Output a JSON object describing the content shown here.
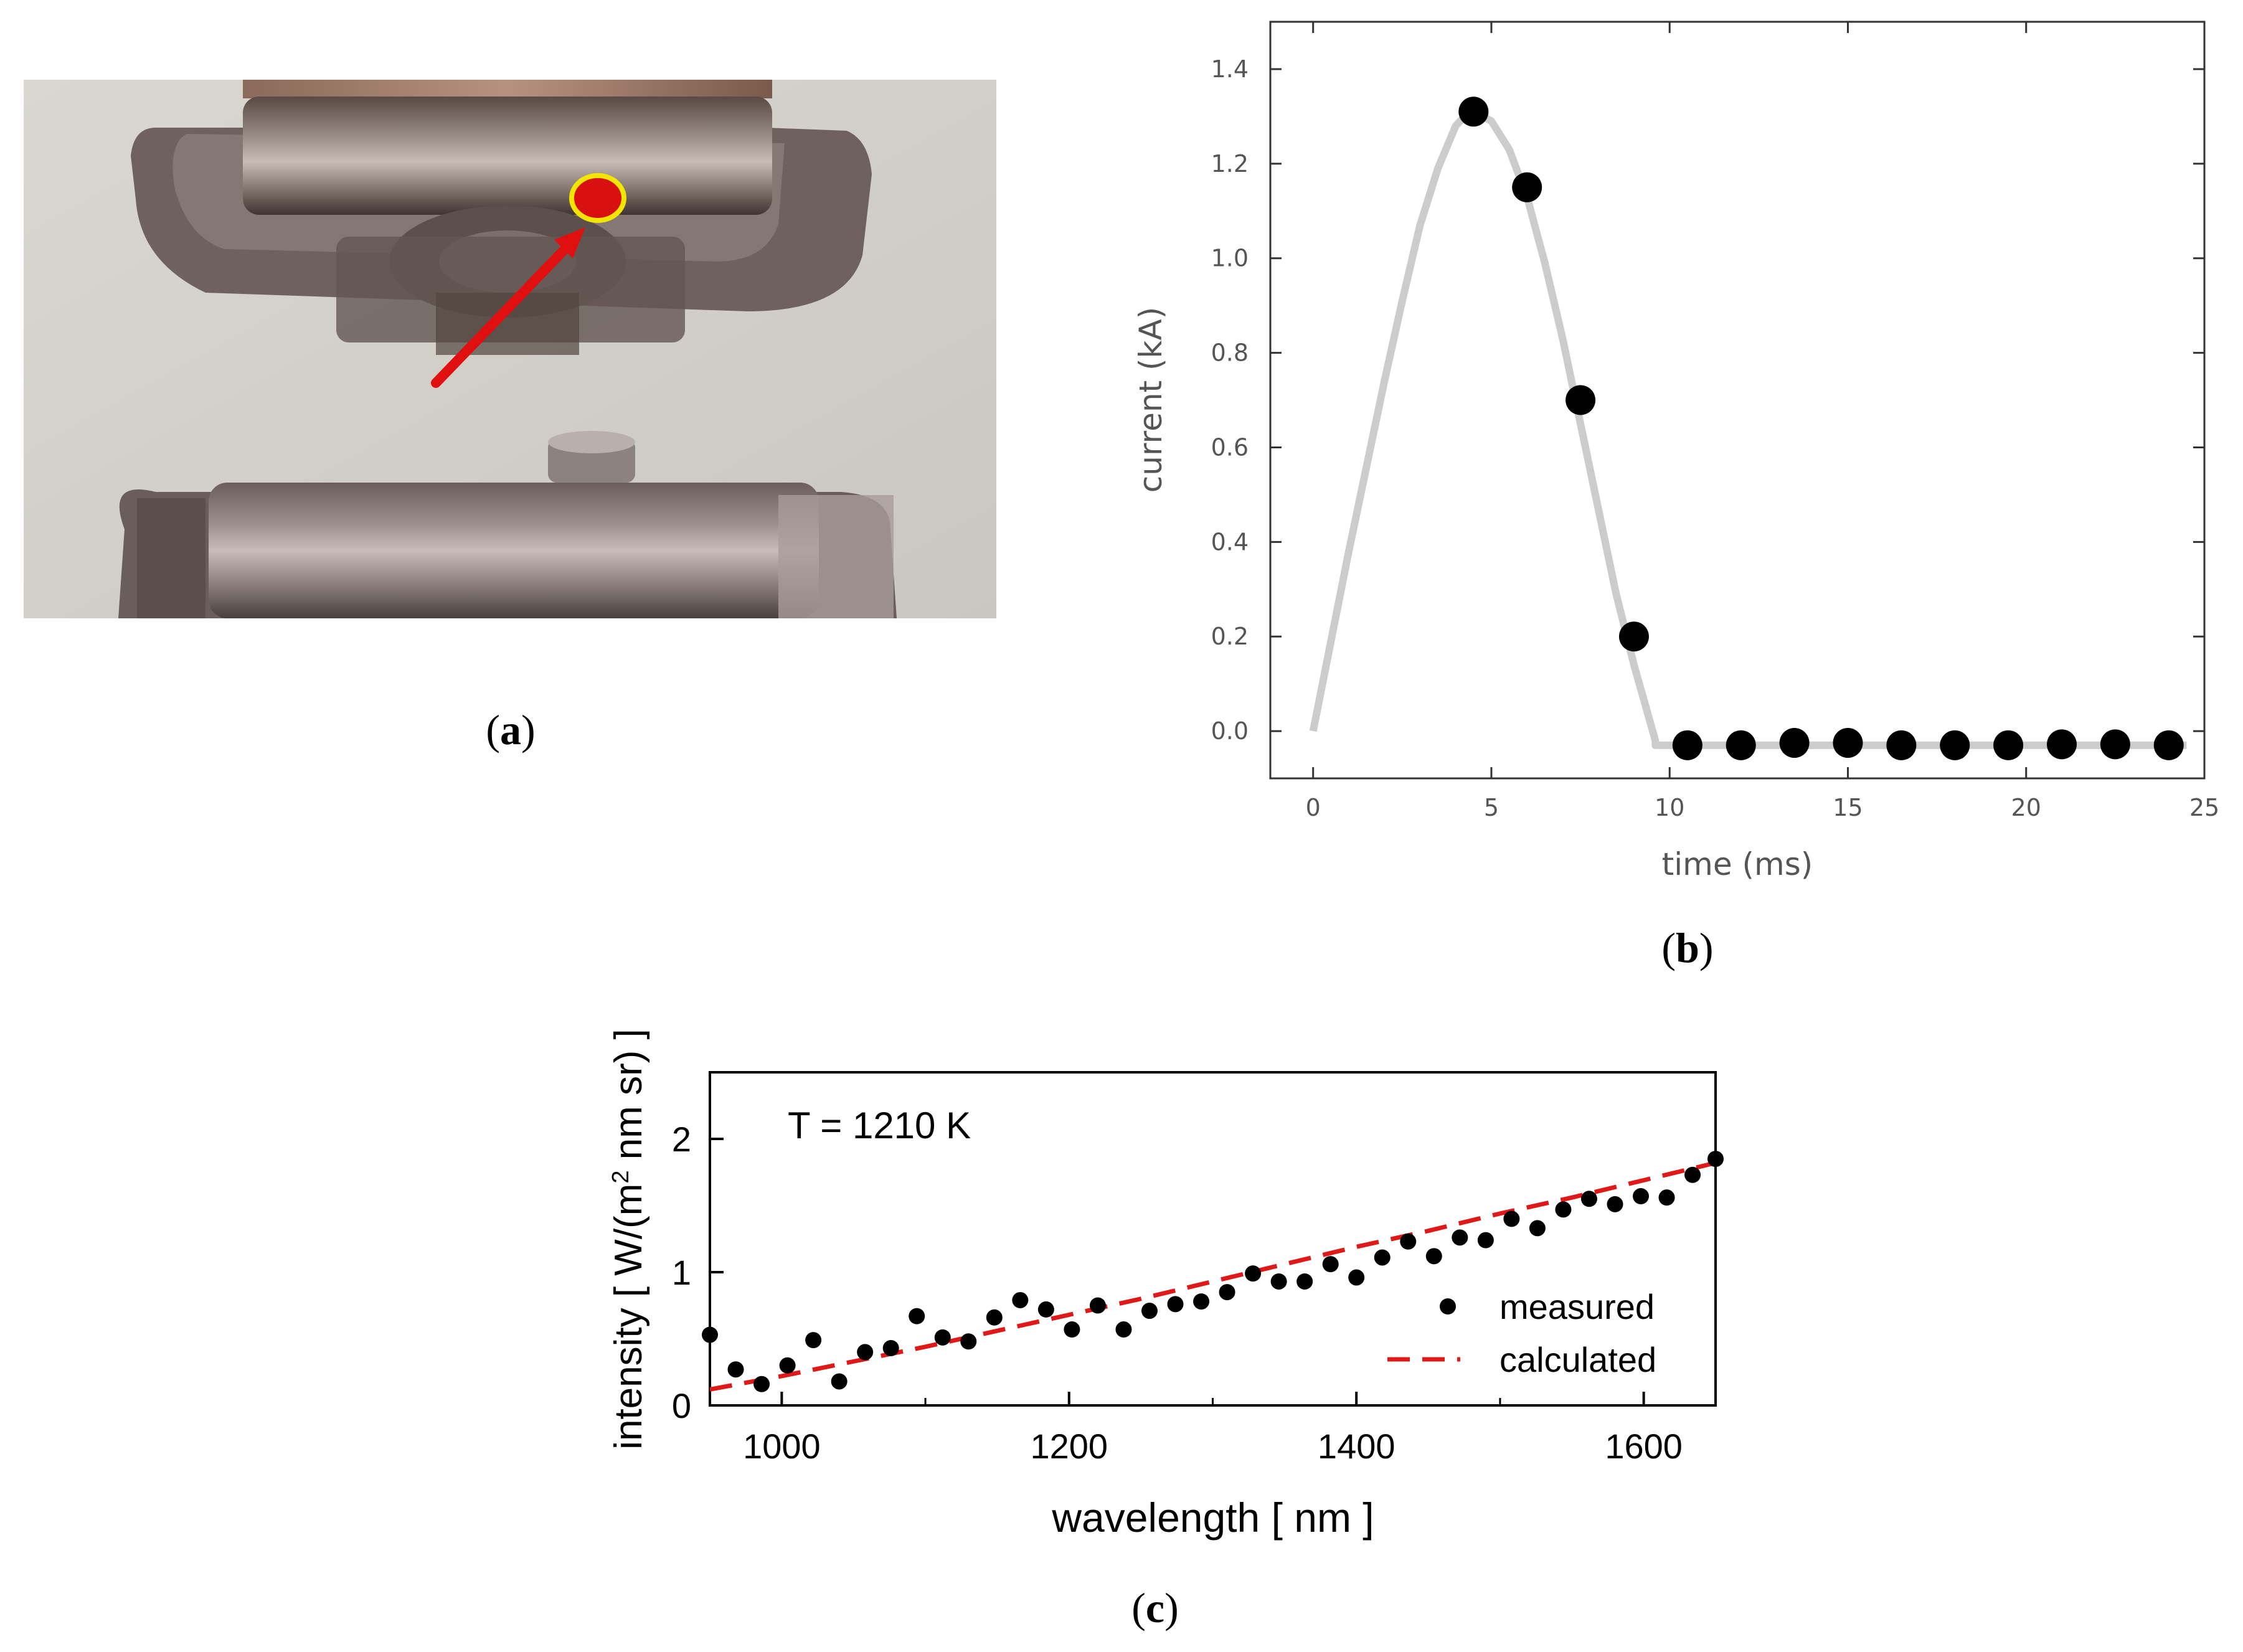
{
  "panel_a": {
    "label_letter": "a",
    "photo_description_icon": "electrode-photo-icon"
  },
  "panel_b": {
    "label_letter": "b"
  },
  "panel_c": {
    "label_letter": "c"
  },
  "colors": {
    "curve_b": "#cccccc",
    "points": "#000000",
    "calculated_line": "#e01818",
    "marker_red": "#d81010",
    "marker_ring": "#f2e600",
    "arrow": "#e01010"
  },
  "chart_data": [
    {
      "id": "b",
      "type": "line",
      "title": "",
      "xlabel": "time (ms)",
      "ylabel": "current (kA)",
      "xlim": [
        -1.2,
        25
      ],
      "ylim": [
        -0.1,
        1.5
      ],
      "x_ticks": [
        0,
        5,
        10,
        15,
        20,
        25
      ],
      "x_tick_labels": [
        "0",
        "5",
        "10",
        "15",
        "20",
        "25"
      ],
      "y_ticks": [
        0.0,
        0.2,
        0.4,
        0.6,
        0.8,
        1.0,
        1.2,
        1.4
      ],
      "y_tick_labels": [
        "0.0",
        "0.2",
        "0.4",
        "0.6",
        "0.8",
        "1.0",
        "1.2",
        "1.4"
      ],
      "series": [
        {
          "name": "measured current (points)",
          "style": "scatter",
          "x": [
            4.5,
            6.0,
            7.5,
            9.0,
            10.5,
            12.0,
            13.5,
            15.0,
            16.5,
            18.0,
            19.5,
            21.0,
            22.5,
            24.0
          ],
          "y": [
            1.31,
            1.15,
            0.7,
            0.2,
            -0.03,
            -0.03,
            -0.025,
            -0.025,
            -0.03,
            -0.03,
            -0.03,
            -0.028,
            -0.028,
            -0.03
          ]
        },
        {
          "name": "current pulse (curve)",
          "style": "line",
          "x": [
            0,
            0.5,
            1,
            1.5,
            2,
            2.5,
            3,
            3.5,
            4,
            4.25,
            4.5,
            5,
            5.5,
            6,
            6.5,
            7,
            7.5,
            8,
            8.5,
            9,
            9.3,
            9.6,
            9.6,
            10,
            12,
            15,
            20,
            24.5
          ],
          "y": [
            0.0,
            0.19,
            0.38,
            0.56,
            0.74,
            0.91,
            1.07,
            1.19,
            1.28,
            1.3,
            1.31,
            1.29,
            1.23,
            1.13,
            0.99,
            0.83,
            0.65,
            0.47,
            0.29,
            0.14,
            0.06,
            -0.02,
            -0.03,
            -0.03,
            -0.03,
            -0.03,
            -0.03,
            -0.03
          ]
        }
      ]
    },
    {
      "id": "c",
      "type": "scatter",
      "title": "",
      "annotation": "T = 1210 K",
      "xlabel": "wavelength [ nm ]",
      "ylabel_prefix": "intensity [ W/(m",
      "ylabel_sup": "2",
      "ylabel_suffix": " nm sr) ]",
      "xlim": [
        950,
        1650
      ],
      "ylim": [
        0,
        2.5
      ],
      "x_ticks": [
        1000,
        1200,
        1400,
        1600
      ],
      "x_tick_labels": [
        "1000",
        "1200",
        "1400",
        "1600"
      ],
      "y_ticks": [
        0,
        1,
        2
      ],
      "y_tick_labels": [
        "0",
        "1",
        "2"
      ],
      "legend": {
        "position": "bottom-right",
        "entries": [
          "measured",
          "calculated"
        ]
      },
      "series": [
        {
          "name": "measured",
          "style": "scatter",
          "x": [
            950,
            968,
            986,
            1004,
            1022,
            1040,
            1058,
            1076,
            1094,
            1112,
            1130,
            1148,
            1166,
            1184,
            1202,
            1220,
            1238,
            1256,
            1274,
            1292,
            1310,
            1328,
            1346,
            1364,
            1382,
            1400,
            1418,
            1436,
            1454,
            1472,
            1490,
            1508,
            1526,
            1544,
            1562,
            1580,
            1598,
            1616,
            1634,
            1650
          ],
          "y": [
            0.53,
            0.27,
            0.16,
            0.3,
            0.49,
            0.18,
            0.4,
            0.43,
            0.67,
            0.51,
            0.48,
            0.66,
            0.79,
            0.72,
            0.57,
            0.75,
            0.57,
            0.71,
            0.76,
            0.78,
            0.85,
            0.99,
            0.93,
            0.93,
            1.06,
            0.96,
            1.11,
            1.23,
            1.12,
            1.26,
            1.24,
            1.4,
            1.33,
            1.47,
            1.55,
            1.51,
            1.57,
            1.56,
            1.73,
            1.85
          ]
        },
        {
          "name": "calculated",
          "style": "dashed-line",
          "x": [
            950,
            1000,
            1050,
            1100,
            1150,
            1200,
            1250,
            1300,
            1350,
            1400,
            1450,
            1500,
            1550,
            1600,
            1650
          ],
          "y": [
            0.12,
            0.22,
            0.33,
            0.44,
            0.56,
            0.68,
            0.8,
            0.93,
            1.06,
            1.19,
            1.31,
            1.44,
            1.56,
            1.69,
            1.82
          ]
        }
      ]
    }
  ]
}
